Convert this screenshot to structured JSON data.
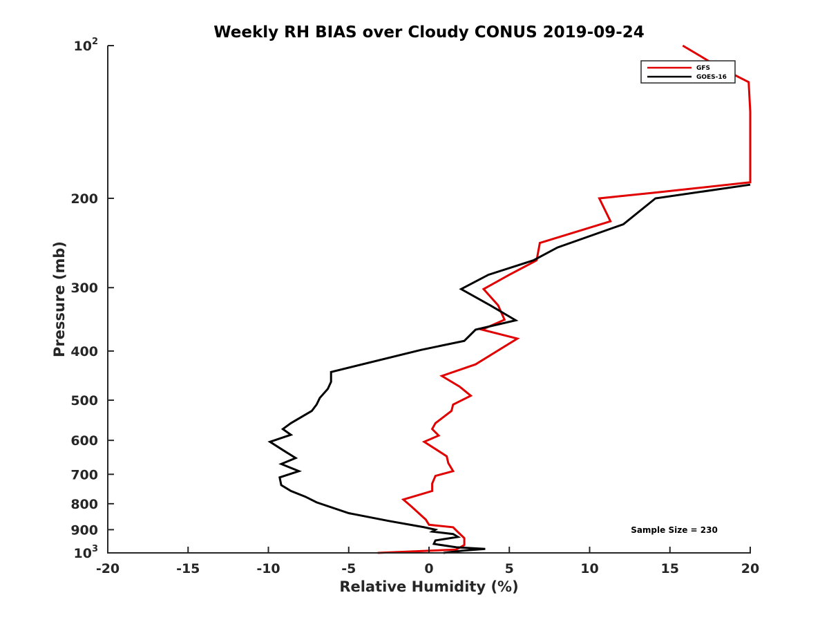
{
  "chart_data": {
    "type": "line",
    "title": "Weekly RH BIAS over Cloudy CONUS 2019-09-24",
    "xlabel": "Relative Humidity (%)",
    "ylabel": "Pressure (mb)",
    "xlim": [
      -20,
      20
    ],
    "ylim": [
      100,
      1000
    ],
    "yscale": "log",
    "y_reversed": true,
    "x_ticks": [
      {
        "value": -20,
        "label": "-20"
      },
      {
        "value": -15,
        "label": "-15"
      },
      {
        "value": -10,
        "label": "-10"
      },
      {
        "value": -5,
        "label": "-5"
      },
      {
        "value": 0,
        "label": "0"
      },
      {
        "value": 5,
        "label": "5"
      },
      {
        "value": 10,
        "label": "10"
      },
      {
        "value": 15,
        "label": "15"
      },
      {
        "value": 20,
        "label": "20"
      }
    ],
    "y_ticks": [
      {
        "value": 100,
        "label": "10",
        "sup": "2"
      },
      {
        "value": 200,
        "label": "200",
        "sup": ""
      },
      {
        "value": 300,
        "label": "300",
        "sup": ""
      },
      {
        "value": 400,
        "label": "400",
        "sup": ""
      },
      {
        "value": 500,
        "label": "500",
        "sup": ""
      },
      {
        "value": 600,
        "label": "600",
        "sup": ""
      },
      {
        "value": 700,
        "label": "700",
        "sup": ""
      },
      {
        "value": 800,
        "label": "800",
        "sup": ""
      },
      {
        "value": 900,
        "label": "900",
        "sup": ""
      },
      {
        "value": 1000,
        "label": "10",
        "sup": "3"
      }
    ],
    "grid": false,
    "legend_position": "top-right",
    "annotation": "Sample Size = 230",
    "series": [
      {
        "name": "GFS",
        "color": "#e00000",
        "points": [
          [
            15.8,
            100
          ],
          [
            18.0,
            110
          ],
          [
            19.9,
            118
          ],
          [
            20.0,
            135
          ],
          [
            20.0,
            148
          ],
          [
            20.0,
            150
          ],
          [
            20.0,
            186
          ],
          [
            14.0,
            195
          ],
          [
            10.6,
            200
          ],
          [
            11.3,
            222
          ],
          [
            6.9,
            245
          ],
          [
            6.7,
            265
          ],
          [
            5.0,
            283
          ],
          [
            3.4,
            302
          ],
          [
            4.3,
            325
          ],
          [
            4.7,
            347
          ],
          [
            3.3,
            363
          ],
          [
            5.5,
            378
          ],
          [
            2.9,
            425
          ],
          [
            0.8,
            448
          ],
          [
            1.9,
            470
          ],
          [
            2.6,
            490
          ],
          [
            1.5,
            510
          ],
          [
            1.4,
            525
          ],
          [
            0.4,
            555
          ],
          [
            0.2,
            570
          ],
          [
            0.6,
            587
          ],
          [
            -0.3,
            604
          ],
          [
            0.6,
            630
          ],
          [
            1.1,
            645
          ],
          [
            1.2,
            665
          ],
          [
            1.5,
            690
          ],
          [
            0.4,
            705
          ],
          [
            0.2,
            730
          ],
          [
            0.2,
            755
          ],
          [
            -1.6,
            785
          ],
          [
            -1.1,
            810
          ],
          [
            -0.2,
            860
          ],
          [
            -0.0,
            880
          ],
          [
            1.5,
            890
          ],
          [
            1.8,
            910
          ],
          [
            2.2,
            935
          ],
          [
            2.2,
            965
          ],
          [
            1.7,
            985
          ],
          [
            -3.2,
            1000
          ]
        ]
      },
      {
        "name": "GOES-16",
        "color": "#000000",
        "points": [
          [
            20.0,
            188
          ],
          [
            14.1,
            200
          ],
          [
            12.1,
            225
          ],
          [
            8.0,
            250
          ],
          [
            6.5,
            265
          ],
          [
            3.7,
            283
          ],
          [
            2.0,
            302
          ],
          [
            3.8,
            325
          ],
          [
            5.4,
            348
          ],
          [
            2.9,
            363
          ],
          [
            2.2,
            382
          ],
          [
            -0.5,
            398
          ],
          [
            -6.1,
            440
          ],
          [
            -6.1,
            460
          ],
          [
            -6.3,
            475
          ],
          [
            -6.8,
            495
          ],
          [
            -7.0,
            510
          ],
          [
            -7.3,
            525
          ],
          [
            -8.6,
            555
          ],
          [
            -9.1,
            570
          ],
          [
            -8.6,
            585
          ],
          [
            -9.9,
            604
          ],
          [
            -9.0,
            630
          ],
          [
            -8.3,
            650
          ],
          [
            -9.2,
            668
          ],
          [
            -8.1,
            690
          ],
          [
            -9.3,
            710
          ],
          [
            -9.2,
            735
          ],
          [
            -8.6,
            755
          ],
          [
            -7.7,
            775
          ],
          [
            -7.0,
            795
          ],
          [
            -5.0,
            835
          ],
          [
            -2.5,
            865
          ],
          [
            -0.3,
            890
          ],
          [
            0.4,
            900
          ],
          [
            0.2,
            908
          ],
          [
            1.5,
            918
          ],
          [
            1.8,
            930
          ],
          [
            0.4,
            945
          ],
          [
            0.3,
            960
          ],
          [
            1.7,
            975
          ],
          [
            3.5,
            982
          ],
          [
            2.1,
            990
          ],
          [
            0.9,
            1000
          ]
        ]
      }
    ]
  }
}
